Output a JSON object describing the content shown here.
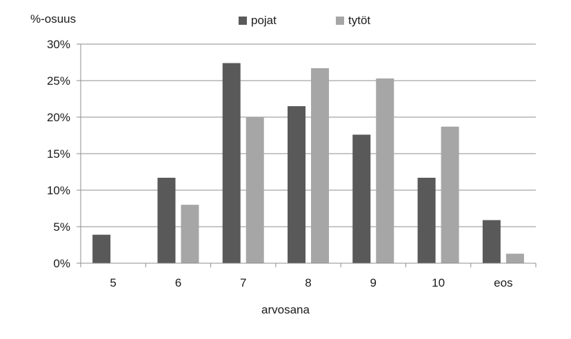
{
  "chart_data": {
    "type": "bar",
    "title": "",
    "ylabel": "%-osuus",
    "xlabel": "arvosana",
    "categories": [
      "5",
      "6",
      "7",
      "8",
      "9",
      "10",
      "eos"
    ],
    "series": [
      {
        "name": "pojat",
        "color": "#595959",
        "values": [
          3.9,
          11.7,
          27.4,
          21.5,
          17.6,
          11.7,
          5.9
        ]
      },
      {
        "name": "tytöt",
        "color": "#a6a6a6",
        "values": [
          0,
          8.0,
          20.0,
          26.7,
          25.3,
          18.7,
          1.3
        ]
      }
    ],
    "ylim": [
      0,
      30
    ],
    "yticks": [
      "0%",
      "5%",
      "10%",
      "15%",
      "20%",
      "25%",
      "30%"
    ],
    "ytick_values": [
      0,
      5,
      10,
      15,
      20,
      25,
      30
    ],
    "grid": true,
    "legend_position": "top"
  }
}
